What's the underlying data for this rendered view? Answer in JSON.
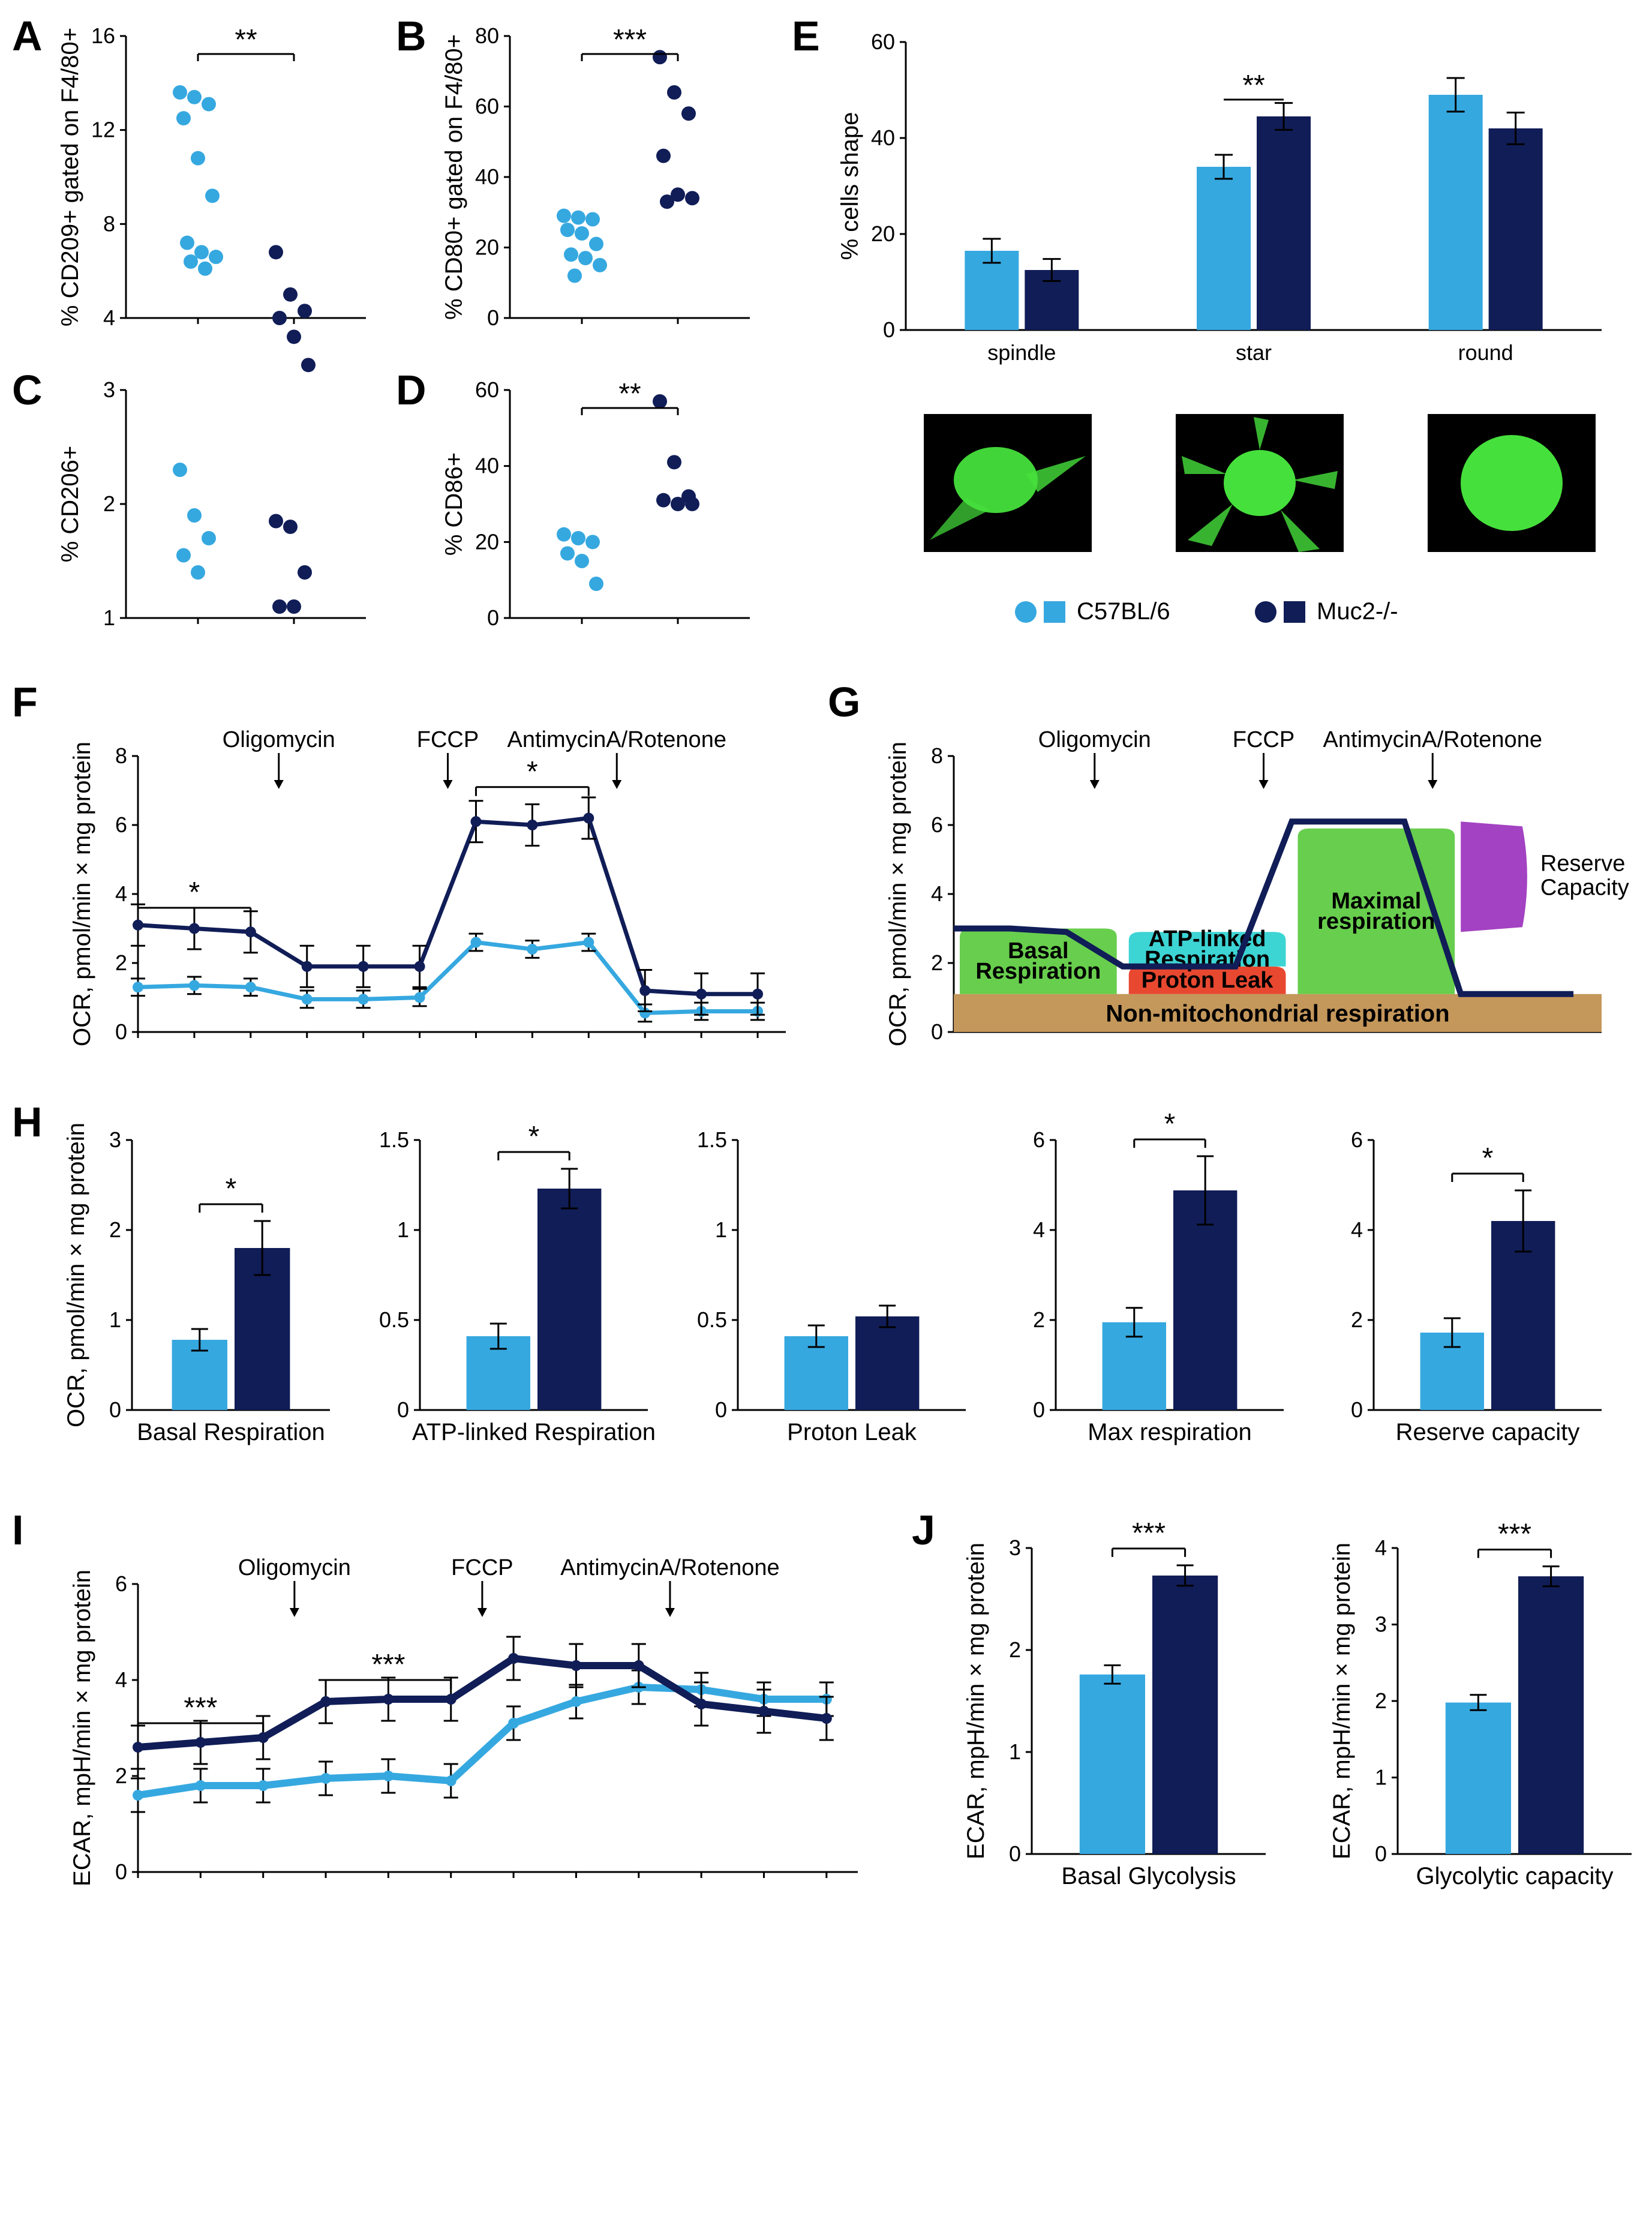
{
  "colors": {
    "group1": "#36a8e0",
    "group2": "#101d57",
    "axis": "#000000",
    "bg": "#ffffff"
  },
  "legend": {
    "group1_label": "C57BL/6",
    "group2_label": "Muc2-/-"
  },
  "panels": {
    "A": {
      "type": "scatter",
      "ylabel": "% CD209+ gated on F4/80+",
      "ylim": [
        4,
        16
      ],
      "yticks": [
        4,
        8,
        12,
        16
      ],
      "sig": "**",
      "series": [
        {
          "group": 1,
          "x": 1,
          "points": [
            13.6,
            13.4,
            13.1,
            12.5,
            10.8,
            9.2,
            7.2,
            6.8,
            6.6,
            6.4,
            6.1
          ]
        },
        {
          "group": 2,
          "x": 2,
          "points": [
            6.8,
            5.0,
            4.3,
            4.0,
            3.2,
            2.0
          ]
        }
      ]
    },
    "B": {
      "type": "scatter",
      "ylabel": "% CD80+ gated on F4/80+",
      "ylim": [
        0,
        80
      ],
      "yticks": [
        0,
        20,
        40,
        60,
        80
      ],
      "sig": "***",
      "series": [
        {
          "group": 1,
          "x": 1,
          "points": [
            29,
            28.5,
            28,
            25,
            24,
            21,
            18,
            17,
            15,
            12
          ]
        },
        {
          "group": 2,
          "x": 2,
          "points": [
            74,
            64,
            58,
            46,
            35,
            34,
            33
          ]
        }
      ]
    },
    "C": {
      "type": "scatter",
      "ylabel": "% CD206+",
      "ylim": [
        1,
        3
      ],
      "yticks": [
        1,
        2,
        3
      ],
      "sig": "",
      "series": [
        {
          "group": 1,
          "x": 1,
          "points": [
            2.3,
            1.9,
            1.7,
            1.55,
            1.4
          ]
        },
        {
          "group": 2,
          "x": 2,
          "points": [
            1.85,
            1.8,
            1.4,
            1.1,
            1.1
          ]
        }
      ]
    },
    "D": {
      "type": "scatter",
      "ylabel": "% CD86+",
      "ylim": [
        0,
        60
      ],
      "yticks": [
        0,
        20,
        40,
        60
      ],
      "sig": "**",
      "series": [
        {
          "group": 1,
          "x": 1,
          "points": [
            22,
            21,
            20,
            17,
            15,
            9
          ]
        },
        {
          "group": 2,
          "x": 2,
          "points": [
            57,
            41,
            32,
            31,
            30,
            30
          ]
        }
      ]
    },
    "E": {
      "type": "bar",
      "ylabel": "% cells shape",
      "ylim": [
        0,
        60
      ],
      "yticks": [
        0,
        20,
        40,
        60
      ],
      "categories": [
        "spindle",
        "star",
        "round"
      ],
      "bars": [
        {
          "cat": "spindle",
          "group": 1,
          "val": 16.5,
          "err": 2.5
        },
        {
          "cat": "spindle",
          "group": 2,
          "val": 12.5,
          "err": 2.3
        },
        {
          "cat": "star",
          "group": 1,
          "val": 34,
          "err": 2.5,
          "sig": "**"
        },
        {
          "cat": "star",
          "group": 2,
          "val": 44.5,
          "err": 2.8
        },
        {
          "cat": "round",
          "group": 1,
          "val": 49,
          "err": 3.5
        },
        {
          "cat": "round",
          "group": 2,
          "val": 42,
          "err": 3.3
        }
      ],
      "cell_images": [
        "spindle",
        "star",
        "round"
      ]
    },
    "F": {
      "type": "line",
      "ylabel": "OCR, pmol/min × mg protein",
      "ylim": [
        0,
        8
      ],
      "yticks": [
        0,
        2,
        4,
        6,
        8
      ],
      "injections": [
        {
          "label": "Oligomycin",
          "after": 3
        },
        {
          "label": "FCCP",
          "after": 6
        },
        {
          "label": "AntimycinA/Rotenone",
          "after": 9
        }
      ],
      "sigs": [
        {
          "from": 1,
          "to": 3,
          "label": "*",
          "y": 3.6
        },
        {
          "from": 7,
          "to": 9,
          "label": "*",
          "y": 7.1
        }
      ],
      "series": [
        {
          "group": 1,
          "points": [
            1.3,
            1.35,
            1.3,
            0.95,
            0.95,
            1.0,
            2.6,
            2.4,
            2.6,
            0.55,
            0.6,
            0.6
          ],
          "err": 0.25
        },
        {
          "group": 2,
          "points": [
            3.1,
            3.0,
            2.9,
            1.9,
            1.9,
            1.9,
            6.1,
            6.0,
            6.2,
            1.2,
            1.1,
            1.1
          ],
          "err": 0.6
        }
      ]
    },
    "G": {
      "type": "schematic",
      "ylabel": "OCR, pmol/min × mg protein",
      "ylim": [
        0,
        8
      ],
      "yticks": [
        0,
        2,
        4,
        6,
        8
      ],
      "injections": [
        {
          "label": "Oligomycin",
          "after": 3
        },
        {
          "label": "FCCP",
          "after": 6
        },
        {
          "label": "AntimycinA/Rotenone",
          "after": 9
        }
      ],
      "regions": {
        "nonmito": {
          "color": "#c4975a",
          "label": "Non-mitochondrial respiration",
          "y": 1.1
        },
        "basal": {
          "color": "#68ce4d",
          "label": "Basal\nRespiration",
          "x": [
            0,
            3
          ],
          "y": [
            1.1,
            3.0
          ]
        },
        "atp": {
          "color": "#3dd4d4",
          "label": "ATP-linked\nRespiration",
          "x": [
            3,
            6
          ],
          "y": [
            1.9,
            2.9
          ]
        },
        "proton": {
          "color": "#e84830",
          "label": "Proton Leak",
          "x": [
            3,
            6
          ],
          "y": [
            1.1,
            1.9
          ]
        },
        "maximal": {
          "color": "#68ce4d",
          "label": "Maximal\nrespiration",
          "x": [
            6,
            9
          ],
          "y": [
            1.1,
            5.9
          ]
        },
        "reserve": {
          "color": "#a342c2",
          "label": "Reserve\nCapacity",
          "x": [
            9,
            10.2
          ],
          "y": [
            2.9,
            6.1
          ]
        }
      },
      "trace": [
        3.0,
        3.0,
        2.9,
        1.9,
        1.9,
        1.9,
        6.1,
        6.1,
        6.1,
        1.1,
        1.1,
        1.1
      ]
    },
    "H": {
      "type": "barset",
      "ylabel": "OCR, pmol/min × mg protein",
      "subpanels": [
        {
          "title": "Basal Respiration",
          "ylim": [
            0,
            3
          ],
          "yticks": [
            0,
            1,
            2,
            3
          ],
          "g1": {
            "val": 0.78,
            "err": 0.12
          },
          "g2": {
            "val": 1.8,
            "err": 0.3
          },
          "sig": "*"
        },
        {
          "title": "ATP-linked Respiration",
          "ylim": [
            0,
            1.5
          ],
          "yticks": [
            0,
            0.5,
            1.0,
            1.5
          ],
          "g1": {
            "val": 0.41,
            "err": 0.07
          },
          "g2": {
            "val": 1.23,
            "err": 0.11
          },
          "sig": "*"
        },
        {
          "title": "Proton Leak",
          "ylim": [
            0,
            1.5
          ],
          "yticks": [
            0,
            0.5,
            1.0,
            1.5
          ],
          "g1": {
            "val": 0.41,
            "err": 0.06
          },
          "g2": {
            "val": 0.52,
            "err": 0.06
          },
          "sig": ""
        },
        {
          "title": "Max respiration",
          "ylim": [
            0,
            6
          ],
          "yticks": [
            0,
            2,
            4,
            6
          ],
          "g1": {
            "val": 1.95,
            "err": 0.32
          },
          "g2": {
            "val": 4.88,
            "err": 0.76
          },
          "sig": "*"
        },
        {
          "title": "Reserve capacity",
          "ylim": [
            0,
            6
          ],
          "yticks": [
            0,
            2,
            4,
            6
          ],
          "g1": {
            "val": 1.72,
            "err": 0.32
          },
          "g2": {
            "val": 4.2,
            "err": 0.68
          },
          "sig": "*"
        }
      ]
    },
    "I": {
      "type": "line",
      "ylabel": "ECAR, mpH/min × mg protein",
      "ylim": [
        0,
        6
      ],
      "yticks": [
        0,
        2,
        4,
        6
      ],
      "injections": [
        {
          "label": "Oligomycin",
          "after": 3
        },
        {
          "label": "FCCP",
          "after": 6
        },
        {
          "label": "AntimycinA/Rotenone",
          "after": 9
        }
      ],
      "sigs": [
        {
          "from": 1,
          "to": 3,
          "label": "***",
          "y": 3.1
        },
        {
          "from": 4,
          "to": 6,
          "label": "***",
          "y": 4.0
        }
      ],
      "series": [
        {
          "group": 1,
          "points": [
            1.6,
            1.8,
            1.8,
            1.95,
            2.0,
            1.9,
            3.1,
            3.55,
            3.85,
            3.8,
            3.6,
            3.6
          ],
          "err": 0.35
        },
        {
          "group": 2,
          "points": [
            2.6,
            2.7,
            2.8,
            3.55,
            3.6,
            3.6,
            4.45,
            4.3,
            4.3,
            3.5,
            3.35,
            3.2
          ],
          "err": 0.45
        }
      ]
    },
    "J": {
      "type": "barset",
      "ylabel": "ECAR, mpH/min × mg protein",
      "subpanels": [
        {
          "title": "Basal Glycolysis",
          "ylim": [
            0,
            3
          ],
          "yticks": [
            0,
            1,
            2,
            3
          ],
          "g1": {
            "val": 1.76,
            "err": 0.09
          },
          "g2": {
            "val": 2.73,
            "err": 0.1
          },
          "sig": "***"
        },
        {
          "title": "Glycolytic capacity",
          "ylim": [
            0,
            4
          ],
          "yticks": [
            0,
            1,
            2,
            3,
            4
          ],
          "g1": {
            "val": 1.98,
            "err": 0.1
          },
          "g2": {
            "val": 3.63,
            "err": 0.13
          },
          "sig": "***"
        }
      ]
    }
  }
}
